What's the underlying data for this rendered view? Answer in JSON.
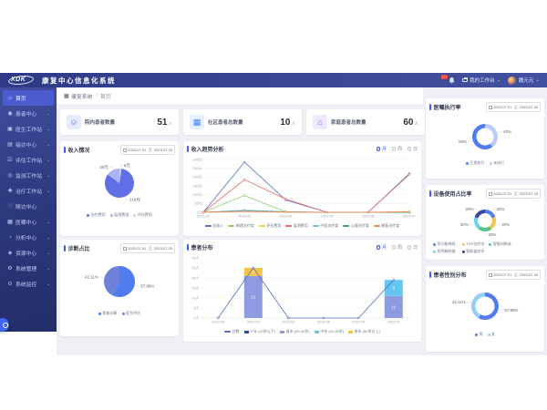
{
  "app": {
    "logo": "XDK",
    "title": "康复中心信息化系统",
    "workbench_label": "我的工作台",
    "username": "魏元元",
    "breadcrumb": {
      "root": "康复系统",
      "sep": "/",
      "current": "首页"
    }
  },
  "sidebar": {
    "items": [
      {
        "label": "首页",
        "icon": "home-icon",
        "glyph": "⌂",
        "active": true,
        "expandable": false
      },
      {
        "label": "患者中心",
        "icon": "patients-center-icon",
        "glyph": "◉",
        "active": false,
        "expandable": true
      },
      {
        "label": "医生工作站",
        "icon": "doctor-workstation-icon",
        "glyph": "▣",
        "active": false,
        "expandable": true
      },
      {
        "label": "接诊中心",
        "icon": "reception-center-icon",
        "glyph": "▤",
        "active": false,
        "expandable": true
      },
      {
        "label": "评估工作站",
        "icon": "assessment-workstation-icon",
        "glyph": "☑",
        "active": false,
        "expandable": true
      },
      {
        "label": "监测工作站",
        "icon": "monitoring-workstation-icon",
        "glyph": "◎",
        "active": false,
        "expandable": true
      },
      {
        "label": "治疗工作站",
        "icon": "treatment-workstation-icon",
        "glyph": "✚",
        "active": false,
        "expandable": true
      },
      {
        "label": "随访中心",
        "icon": "followup-center-icon",
        "glyph": "♡",
        "active": false,
        "expandable": false
      },
      {
        "label": "医嘱中心",
        "icon": "medical-order-center-icon",
        "glyph": "▦",
        "active": false,
        "expandable": true
      },
      {
        "label": "分析中心",
        "icon": "analysis-center-icon",
        "glyph": "◔",
        "active": false,
        "expandable": true
      },
      {
        "label": "资源中心",
        "icon": "resource-center-icon",
        "glyph": "◈",
        "active": false,
        "expandable": true
      },
      {
        "label": "系统管理",
        "icon": "system-management-icon",
        "glyph": "⚙",
        "active": false,
        "expandable": true
      },
      {
        "label": "系统监控",
        "icon": "system-monitor-icon",
        "glyph": "⊙",
        "active": false,
        "expandable": true
      }
    ]
  },
  "stats": {
    "cards": [
      {
        "icon": "inpatient-icon",
        "glyph": "☺",
        "iconColor": "#4a67e8",
        "iconBg": "#e6ebff",
        "label": "院内患者数量",
        "value": "51",
        "unit": "人"
      },
      {
        "icon": "community-building-icon",
        "glyph": "▦",
        "iconColor": "#3d7ef7",
        "iconBg": "#e4efff",
        "label": "社区患者总数量",
        "value": "10",
        "unit": "人"
      },
      {
        "icon": "family-home-icon",
        "glyph": "⌂",
        "iconColor": "#8b5cf6",
        "iconBg": "#efe8ff",
        "label": "家庭患者总数量",
        "value": "60",
        "unit": "人"
      }
    ]
  },
  "panels": {
    "income": {
      "title": "收入情况",
      "date_from": "2023-07-01",
      "date_sep": "至",
      "date_to": "2023-07-25"
    },
    "trend": {
      "title": "收入趋势分析",
      "periods": [
        "月",
        "周",
        "日"
      ],
      "selected": "月"
    },
    "diagnosis": {
      "title": "诊断占比",
      "date_from": "2023-07-01",
      "date_sep": "至",
      "date_to": "2023-07-25"
    },
    "patients": {
      "title": "患者分布",
      "periods": [
        "月",
        "周",
        "日"
      ],
      "selected": "月"
    },
    "orders": {
      "title": "医嘱执行率",
      "date_from": "2023-07-01",
      "date_sep": "至",
      "date_to": "2023-07-25"
    },
    "devices": {
      "title": "设备使用占比率",
      "date_from": "2023-07-01",
      "date_sep": "至",
      "date_to": "2023-07-25"
    },
    "gender": {
      "title": "患者性别分布",
      "date_from": "2023-07-01",
      "date_sep": "至",
      "date_to": "2023-07-25"
    }
  },
  "chart_data": [
    {
      "id": "income-pie",
      "type": "pie",
      "title": "收入情况",
      "unit": "元",
      "slices": [
        {
          "name": "评估费用",
          "value": 6,
          "color": "#cfd4e2"
        },
        {
          "name": "治疗费用",
          "value": 216,
          "color": "#5f6fe6"
        },
        {
          "name": "监测费用",
          "value": 39,
          "color": "#a9b5f2"
        }
      ]
    },
    {
      "id": "income-trend",
      "type": "line",
      "title": "收入趋势分析",
      "unit": "元",
      "x": [
        "2023-02",
        "2023-03",
        "2023-04",
        "2023-05",
        "2023-06",
        "2023-07"
      ],
      "ylim": [
        0,
        300
      ],
      "ystep": 50,
      "series": [
        {
          "name": "总收入",
          "color": "#5470c6",
          "values": [
            0,
            285,
            70,
            0,
            0,
            220
          ]
        },
        {
          "name": "物理治疗类",
          "color": "#91cc75",
          "values": [
            0,
            95,
            2,
            0,
            0,
            0
          ]
        },
        {
          "name": "评估费用",
          "color": "#fac858",
          "values": [
            0,
            10,
            2,
            0,
            0,
            5
          ]
        },
        {
          "name": "监测费用",
          "color": "#ee6666",
          "values": [
            0,
            185,
            75,
            0,
            0,
            215
          ]
        },
        {
          "name": "中医治疗类",
          "color": "#73c0de",
          "values": [
            0,
            12,
            3,
            0,
            0,
            0
          ]
        },
        {
          "name": "心理治疗类",
          "color": "#3ba272",
          "values": [
            0,
            8,
            2,
            0,
            0,
            0
          ]
        },
        {
          "name": "康复治疗类",
          "color": "#fc8452",
          "values": [
            0,
            5,
            1,
            0,
            0,
            3
          ]
        }
      ]
    },
    {
      "id": "diagnosis-pie",
      "type": "pie",
      "title": "诊断占比",
      "unit": "%",
      "slices": [
        {
          "name": "智能诊断",
          "value": 57.89,
          "color": "#4f7df0"
        },
        {
          "name": "医生评估",
          "value": 42.11,
          "color": "#7080d8"
        }
      ]
    },
    {
      "id": "patients-bar",
      "type": "bar-line",
      "title": "患者分布",
      "unit": "人",
      "x": [
        "2023-02",
        "2023-03",
        "2023-04",
        "2023-05",
        "2023-06",
        "2023-07"
      ],
      "ylim": [
        0,
        30
      ],
      "ystep": 5,
      "line": {
        "name": "总数",
        "color": "#5470c6",
        "values": [
          0,
          25,
          0,
          0,
          0,
          19
        ]
      },
      "stacks": [
        {
          "name": "少年 (20岁以下)",
          "color": "#33479e",
          "values": [
            0,
            0,
            0,
            0,
            0,
            0
          ]
        },
        {
          "name": "青年 (20-40岁)",
          "color": "#8e9be0",
          "values": [
            0,
            21,
            0,
            0,
            0,
            11
          ]
        },
        {
          "name": "中年 (41-60岁)",
          "color": "#64c5ee",
          "values": [
            0,
            0,
            0,
            0,
            0,
            8
          ]
        },
        {
          "name": "老年 (60岁以上)",
          "color": "#f6c443",
          "values": [
            0,
            4,
            0,
            0,
            0,
            0
          ]
        }
      ]
    },
    {
      "id": "orders-donut",
      "type": "donut",
      "title": "医嘱执行率",
      "unit": "%",
      "slices": [
        {
          "name": "未执行",
          "value": 40,
          "color": "#b9ccfa"
        },
        {
          "name": "正常执行",
          "value": 60,
          "color": "#4f7df0"
        }
      ]
    },
    {
      "id": "devices-donut",
      "type": "donut",
      "title": "设备使用占比率",
      "unit": "%",
      "slices": [
        {
          "name": "多功能神经..",
          "value": 20,
          "color": "#4f7df0"
        },
        {
          "name": "TDP治疗仪",
          "value": 20,
          "color": "#f6c443"
        },
        {
          "name": "智能训练床..",
          "value": 20,
          "color": "#57c28a"
        },
        {
          "name": "经颅磁刺激..",
          "value": 20,
          "color": "#6fd0f6"
        },
        {
          "name": "智能姿态评..",
          "value": 20,
          "color": "#33479e"
        }
      ]
    },
    {
      "id": "gender-donut",
      "type": "donut",
      "title": "患者性别分布",
      "unit": "%",
      "slices": [
        {
          "name": "男",
          "value": 57.89,
          "color": "#4f7df0"
        },
        {
          "name": "女",
          "value": 42.11,
          "color": "#8fd0f8"
        }
      ]
    }
  ]
}
